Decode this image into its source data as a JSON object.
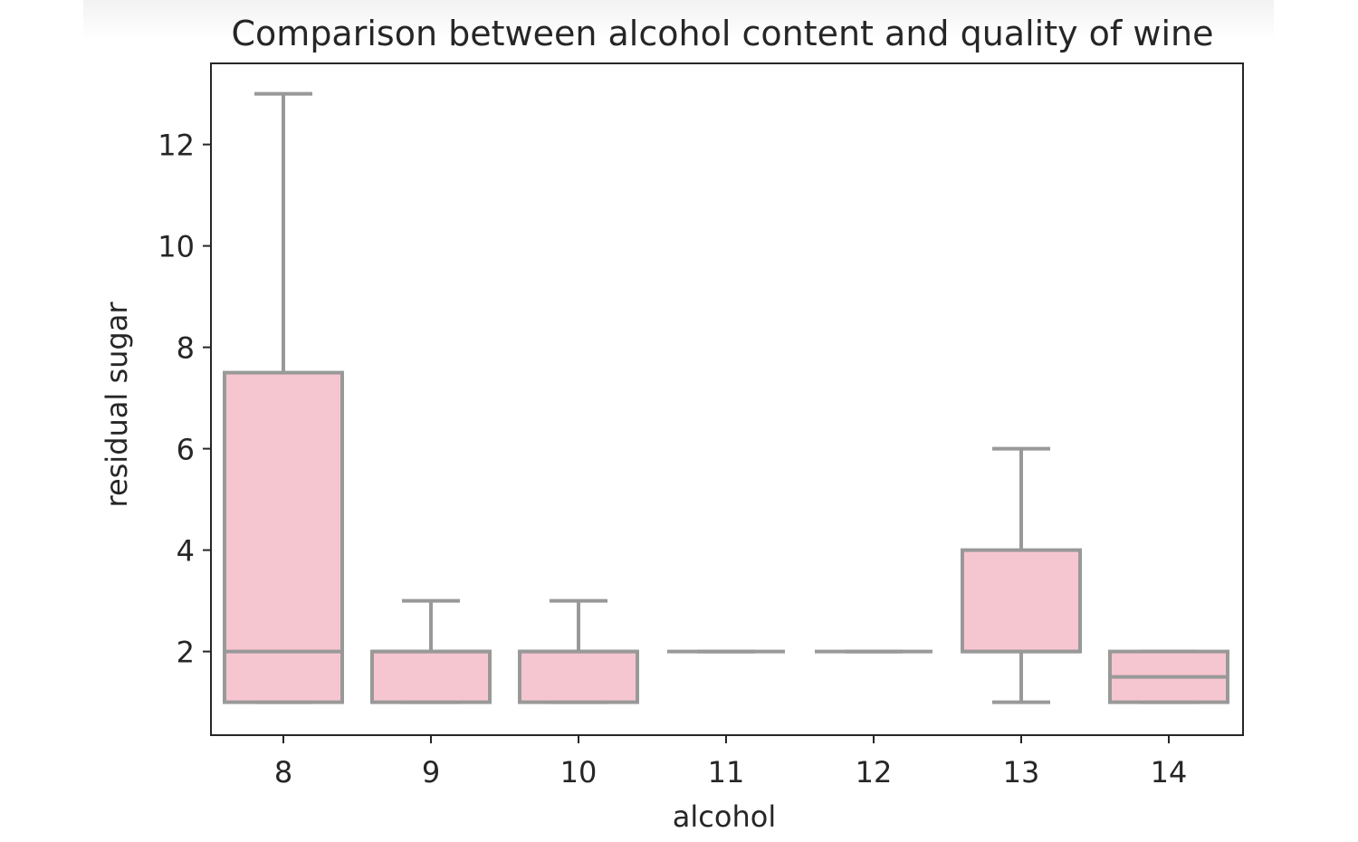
{
  "chart_data": {
    "type": "box",
    "title": "Comparison between alcohol content and quality of wine",
    "xlabel": "alcohol",
    "ylabel": "residual sugar",
    "categories": [
      "8",
      "9",
      "10",
      "11",
      "12",
      "13",
      "14"
    ],
    "ylim": [
      0.35,
      13.6
    ],
    "yticks": [
      2,
      4,
      6,
      8,
      10,
      12
    ],
    "grid": false,
    "boxes": [
      {
        "category": "8",
        "whisker_low": 1.0,
        "q1": 1.0,
        "median": 2.0,
        "q3": 7.5,
        "whisker_high": 13.0
      },
      {
        "category": "9",
        "whisker_low": 1.0,
        "q1": 1.0,
        "median": 2.0,
        "q3": 2.0,
        "whisker_high": 3.0
      },
      {
        "category": "10",
        "whisker_low": 1.0,
        "q1": 1.0,
        "median": 2.0,
        "q3": 2.0,
        "whisker_high": 3.0
      },
      {
        "category": "11",
        "whisker_low": 2.0,
        "q1": 2.0,
        "median": 2.0,
        "q3": 2.0,
        "whisker_high": 2.0
      },
      {
        "category": "12",
        "whisker_low": 2.0,
        "q1": 2.0,
        "median": 2.0,
        "q3": 2.0,
        "whisker_high": 2.0
      },
      {
        "category": "13",
        "whisker_low": 1.0,
        "q1": 2.0,
        "median": 2.0,
        "q3": 4.0,
        "whisker_high": 6.0
      },
      {
        "category": "14",
        "whisker_low": 1.0,
        "q1": 1.0,
        "median": 1.5,
        "q3": 2.0,
        "whisker_high": 2.0
      }
    ],
    "colors": {
      "box_fill": "#f6c6d0",
      "box_edge": "#999999",
      "axes": "#262626"
    }
  }
}
